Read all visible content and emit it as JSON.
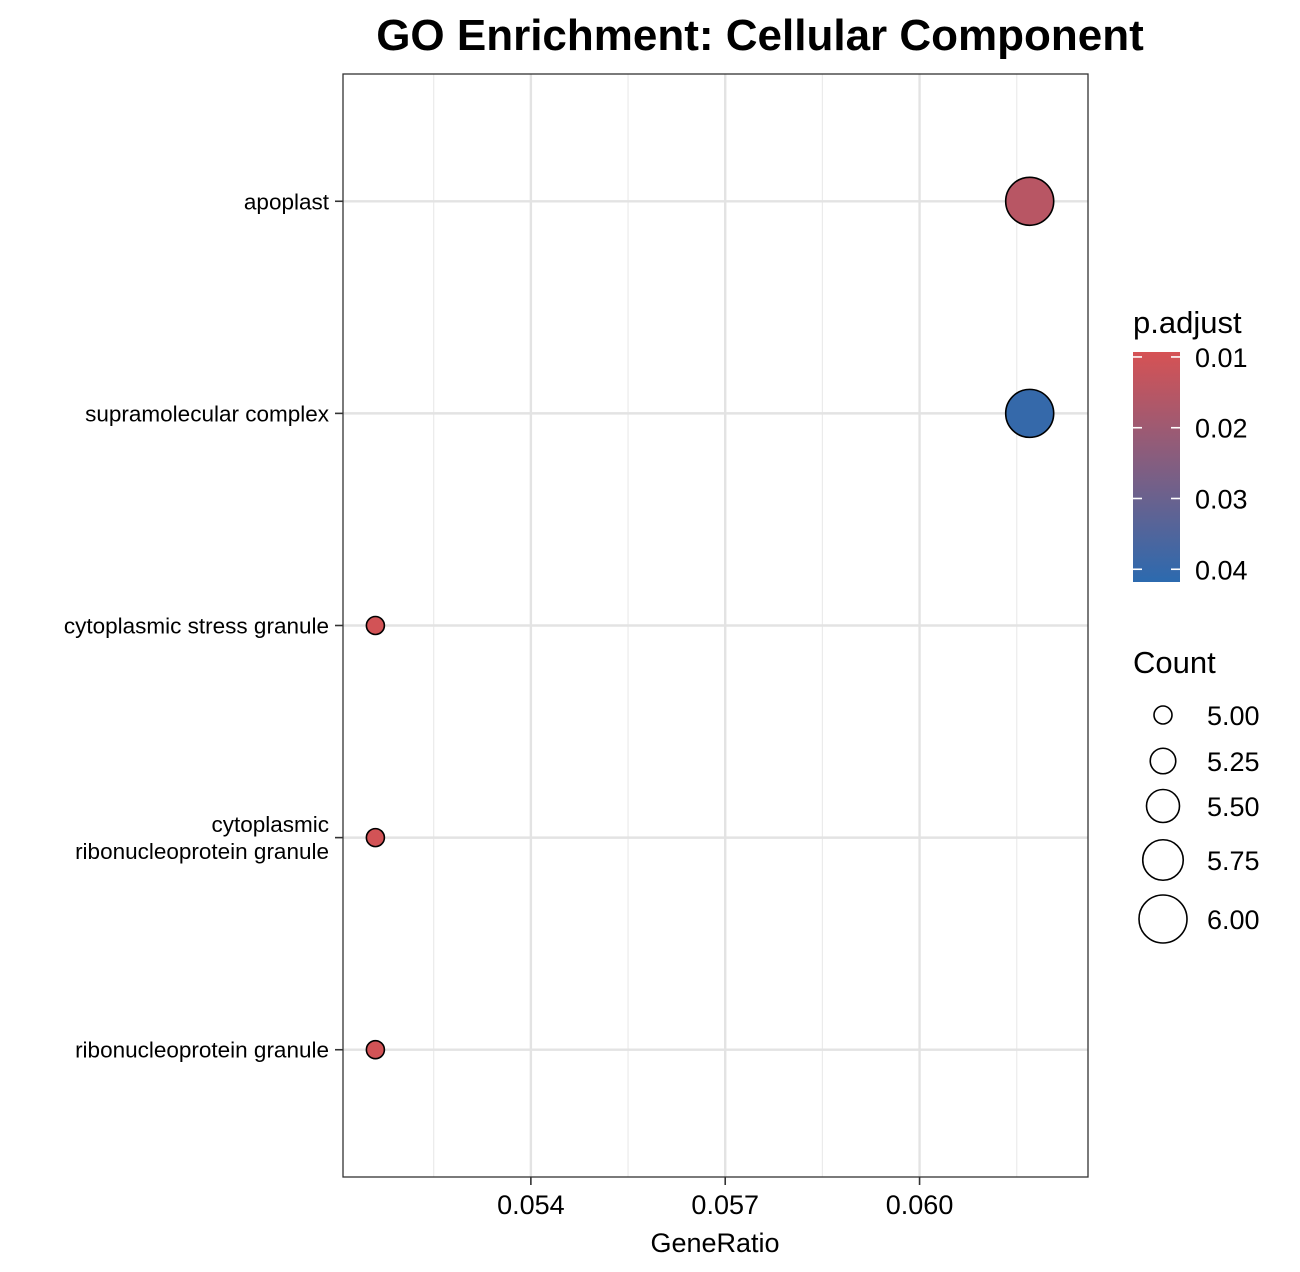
{
  "chart_data": {
    "type": "scatter",
    "title": "GO Enrichment: Cellular Component",
    "xlabel": "GeneRatio",
    "ylabel": "",
    "xlim": [
      0.0511,
      0.0626
    ],
    "x_ticks": [
      "0.054",
      "0.057",
      "0.060"
    ],
    "x_tick_values": [
      0.054,
      0.057,
      0.06
    ],
    "x_minor_values": [
      0.0525,
      0.0555,
      0.0585,
      0.0615
    ],
    "categories": [
      "apoplast",
      "supramolecular complex",
      "cytoplasmic stress granule",
      "cytoplasmic\nribonucleoprotein granule",
      "ribonucleoprotein granule"
    ],
    "points": [
      {
        "category": "apoplast",
        "x": 0.0617,
        "count": 6,
        "p_adjust": 0.015
      },
      {
        "category": "supramolecular complex",
        "x": 0.0617,
        "count": 6,
        "p_adjust": 0.04
      },
      {
        "category": "cytoplasmic stress granule",
        "x": 0.0516,
        "count": 5,
        "p_adjust": 0.01
      },
      {
        "category": "cytoplasmic\nribonucleoprotein granule",
        "x": 0.0516,
        "count": 5,
        "p_adjust": 0.01
      },
      {
        "category": "ribonucleoprotein granule",
        "x": 0.0516,
        "count": 5,
        "p_adjust": 0.01
      }
    ],
    "grid": true,
    "legend_position": "right",
    "color_legend": {
      "title": "p.adjust",
      "ticks": [
        "0.01",
        "0.02",
        "0.03",
        "0.04"
      ],
      "tick_values": [
        0.01,
        0.02,
        0.03,
        0.04
      ],
      "range": [
        0.0093,
        0.0418
      ],
      "low_color": "#d65254",
      "high_color": "#2c6aaf"
    },
    "size_legend": {
      "title": "Count",
      "labels": [
        "5.00",
        "5.25",
        "5.50",
        "5.75",
        "6.00"
      ],
      "values": [
        5.0,
        5.25,
        5.5,
        5.75,
        6.0
      ]
    }
  }
}
